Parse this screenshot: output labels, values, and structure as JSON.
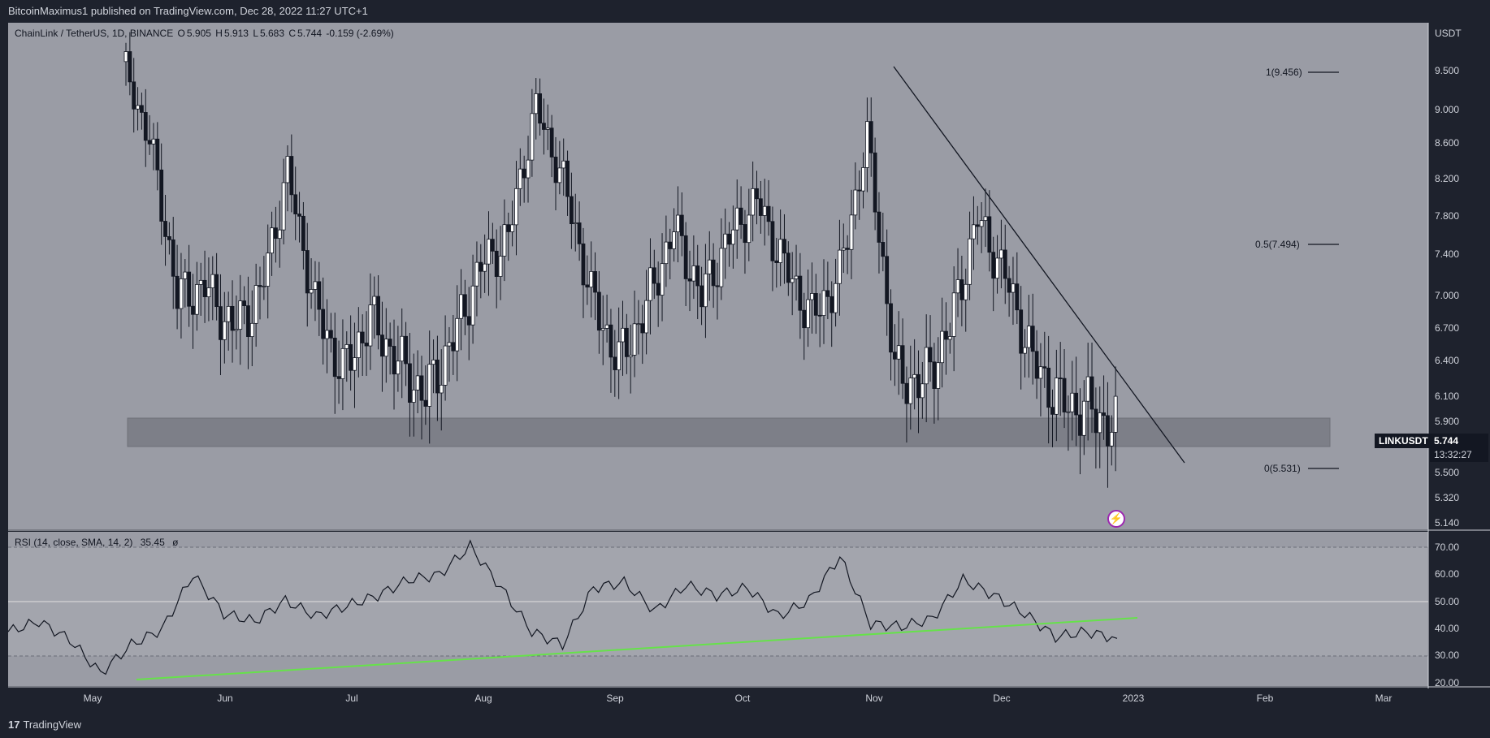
{
  "header": {
    "published_text": "BitcoinMaximus1 published on TradingView.com, Dec 28, 2022 11:27 UTC+1"
  },
  "legend": {
    "symbol": "ChainLink / TetherUS, 1D, BINANCE",
    "open_label": "O",
    "open": "5.905",
    "high_label": "H",
    "high": "5.913",
    "low_label": "L",
    "low": "5.683",
    "close_label": "C",
    "close": "5.744",
    "change": "-0.159 (-2.69%)"
  },
  "rsi_legend": {
    "label": "RSI (14, close, SMA, 14, 2)",
    "value": "35.45",
    "extra": "ø"
  },
  "price_axis": {
    "unit": "USDT",
    "ticks": [
      "9.500",
      "9.000",
      "8.600",
      "8.200",
      "7.800",
      "7.400",
      "7.000",
      "6.700",
      "6.400",
      "6.100",
      "5.900",
      "5.500",
      "5.320",
      "5.140"
    ]
  },
  "rsi_axis": {
    "ticks": [
      "70.00",
      "60.00",
      "50.00",
      "40.00",
      "30.00",
      "20.00"
    ]
  },
  "time_axis": {
    "ticks": [
      "May",
      "Jun",
      "Jul",
      "Aug",
      "Sep",
      "Oct",
      "Nov",
      "Dec",
      "2023",
      "Feb",
      "Mar"
    ]
  },
  "fib_levels": {
    "level_1": "1(9.456)",
    "level_05": "0.5(7.494)",
    "level_0": "0(5.531)"
  },
  "price_tag": {
    "symbol": "LINKUSDT",
    "price": "5.744",
    "countdown": "13:32:27"
  },
  "footer": {
    "brand": "TradingView"
  },
  "colors": {
    "background": "#1e222d",
    "pane": "#9a9ca5",
    "candle": "#131722",
    "support_zone": "#7d7f88",
    "rsi_trendline": "#66e24a",
    "accent": "#9c27b0"
  },
  "chart_data": [
    {
      "type": "candlestick",
      "title": "ChainLink / TetherUS, 1D, BINANCE",
      "x_ticks": [
        "May",
        "Jun",
        "Jul",
        "Aug",
        "Sep",
        "Oct",
        "Nov",
        "Dec",
        "2023",
        "Feb",
        "Mar"
      ],
      "ylim": [
        5.05,
        10.0
      ],
      "y_scale": "log",
      "annotations": {
        "fib_retracement": [
          {
            "label": "1(9.456)",
            "value": 9.456
          },
          {
            "label": "0.5(7.494)",
            "value": 7.494
          },
          {
            "label": "0(5.531)",
            "value": 5.531
          }
        ],
        "support_zone": [
          5.7,
          5.95
        ],
        "descending_trendline": [
          {
            "x": "2022-11-07",
            "y": 9.53
          },
          {
            "x": "2023-01-12",
            "y": 5.58
          }
        ]
      },
      "close_series": {
        "x": [
          "2022-04-25",
          "2022-05-01",
          "2022-05-08",
          "2022-05-15",
          "2022-05-22",
          "2022-05-29",
          "2022-06-05",
          "2022-06-12",
          "2022-06-19",
          "2022-06-26",
          "2022-07-03",
          "2022-07-10",
          "2022-07-17",
          "2022-07-24",
          "2022-07-31",
          "2022-08-07",
          "2022-08-14",
          "2022-08-21",
          "2022-08-28",
          "2022-09-04",
          "2022-09-11",
          "2022-09-18",
          "2022-09-25",
          "2022-10-02",
          "2022-10-09",
          "2022-10-16",
          "2022-10-23",
          "2022-10-30",
          "2022-11-06",
          "2022-11-13",
          "2022-11-20",
          "2022-11-27",
          "2022-12-04",
          "2022-12-11",
          "2022-12-18",
          "2022-12-25",
          "2022-12-28"
        ],
        "values": [
          9.6,
          8.6,
          6.9,
          7.0,
          6.6,
          6.9,
          8.2,
          6.8,
          6.2,
          6.7,
          6.3,
          6.0,
          6.5,
          7.2,
          7.5,
          9.0,
          8.1,
          6.9,
          6.3,
          6.8,
          7.6,
          6.9,
          7.5,
          7.9,
          7.2,
          6.7,
          7.1,
          8.6,
          6.2,
          6.1,
          6.6,
          7.7,
          7.1,
          6.3,
          5.95,
          5.9,
          5.744
        ]
      }
    },
    {
      "type": "line",
      "title": "RSI (14, close, SMA, 14, 2)",
      "ylim": [
        18,
        75
      ],
      "reference_lines": [
        30,
        50,
        70
      ],
      "series": [
        {
          "x": [
            "2022-04-25",
            "2022-05-01",
            "2022-05-08",
            "2022-05-15",
            "2022-05-22",
            "2022-05-29",
            "2022-06-05",
            "2022-06-12",
            "2022-06-19",
            "2022-06-26",
            "2022-07-03",
            "2022-07-10",
            "2022-07-17",
            "2022-07-24",
            "2022-07-31",
            "2022-08-07",
            "2022-08-14",
            "2022-08-21",
            "2022-08-28",
            "2022-09-04",
            "2022-09-11",
            "2022-09-18",
            "2022-09-25",
            "2022-10-02",
            "2022-10-09",
            "2022-10-16",
            "2022-10-23",
            "2022-10-30",
            "2022-11-06",
            "2022-11-13",
            "2022-11-20",
            "2022-11-27",
            "2022-12-04",
            "2022-12-11",
            "2022-12-18",
            "2022-12-25",
            "2022-12-28"
          ],
          "values": [
            38,
            42,
            35,
            22,
            33,
            39,
            60,
            45,
            42,
            50,
            44,
            48,
            52,
            58,
            60,
            71,
            55,
            38,
            33,
            55,
            57,
            46,
            56,
            52,
            55,
            44,
            50,
            67,
            41,
            40,
            43,
            58,
            52,
            45,
            36,
            38,
            35.45
          ]
        }
      ],
      "annotations": {
        "rsi_trendline": [
          {
            "x": "2022-05-12",
            "y": 21
          },
          {
            "x": "2022-12-31",
            "y": 44
          }
        ]
      }
    }
  ]
}
